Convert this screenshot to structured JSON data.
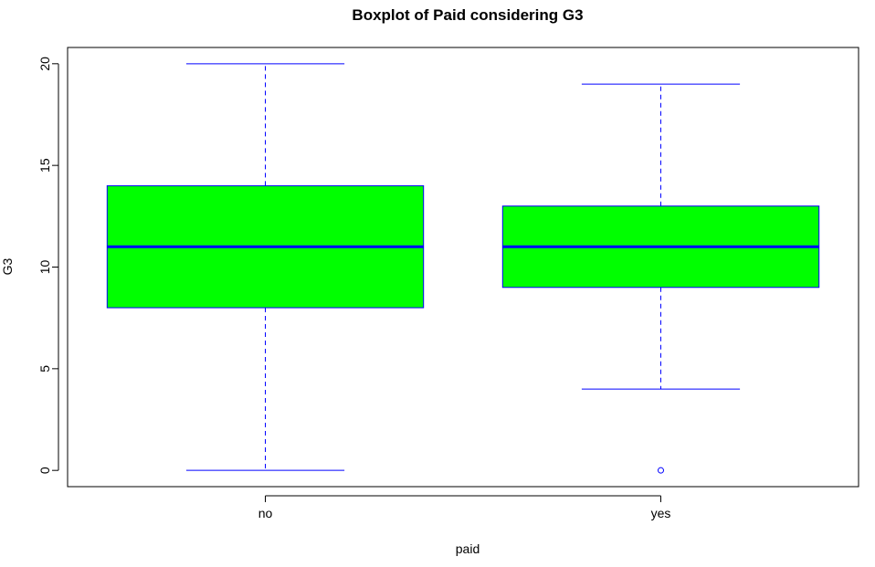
{
  "chart_data": {
    "type": "box",
    "title": "Boxplot of Paid considering G3",
    "xlabel": "paid",
    "ylabel": "G3",
    "categories": [
      "no",
      "yes"
    ],
    "yticks": [
      0,
      5,
      10,
      15,
      20
    ],
    "ylim": [
      -0.8,
      20.8
    ],
    "boxes": [
      {
        "category": "no",
        "whisker_low": 0,
        "q1": 8,
        "median": 11,
        "q3": 14,
        "whisker_high": 20,
        "outliers": []
      },
      {
        "category": "yes",
        "whisker_low": 4,
        "q1": 9,
        "median": 11,
        "q3": 13,
        "whisker_high": 19,
        "outliers": [
          0
        ]
      }
    ],
    "grid": false,
    "colors": {
      "box_fill": "#00ff00",
      "box_border": "#0000ff",
      "whisker": "#0000ff",
      "median": "#0000ff",
      "outlier": "#0000ff",
      "frame": "#000000"
    }
  }
}
